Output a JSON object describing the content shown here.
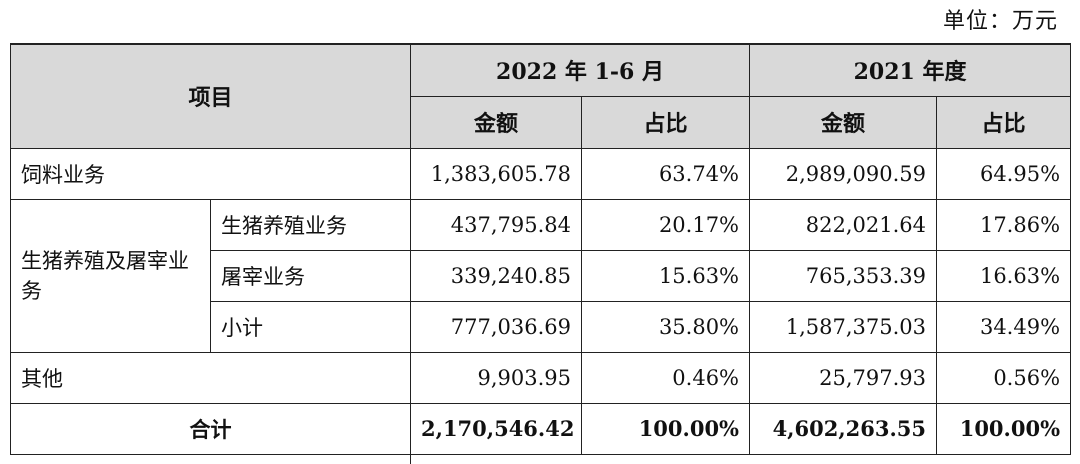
{
  "unit_note": "单位：万元",
  "header": {
    "item": "项目",
    "period_2022": "2022 年 1-6 月",
    "period_2021": "2021 年度",
    "amount": "金额",
    "ratio": "占比"
  },
  "rows": {
    "feed": {
      "label": "饲料业务",
      "amt_2022": "1,383,605.78",
      "pct_2022": "63.74%",
      "amt_2021": "2,989,090.59",
      "pct_2021": "64.95%"
    },
    "pig_group_label": "生猪养殖及屠宰业务",
    "pig_farming": {
      "label": "生猪养殖业务",
      "amt_2022": "437,795.84",
      "pct_2022": "20.17%",
      "amt_2021": "822,021.64",
      "pct_2021": "17.86%"
    },
    "slaughter": {
      "label": "屠宰业务",
      "amt_2022": "339,240.85",
      "pct_2022": "15.63%",
      "amt_2021": "765,353.39",
      "pct_2021": "16.63%"
    },
    "subtotal": {
      "label": "小计",
      "amt_2022": "777,036.69",
      "pct_2022": "35.80%",
      "amt_2021": "1,587,375.03",
      "pct_2021": "34.49%"
    },
    "other": {
      "label": "其他",
      "amt_2022": "9,903.95",
      "pct_2022": "0.46%",
      "amt_2021": "25,797.93",
      "pct_2021": "0.56%"
    },
    "total": {
      "label": "合计",
      "amt_2022": "2,170,546.42",
      "pct_2022": "100.00%",
      "amt_2021": "4,602,263.55",
      "pct_2021": "100.00%"
    }
  }
}
